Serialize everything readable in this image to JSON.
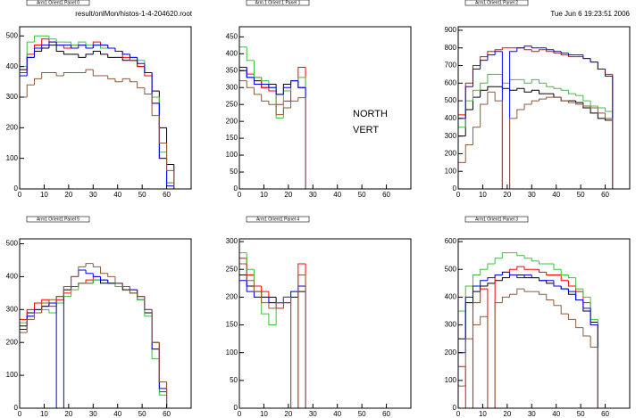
{
  "header": {
    "file": "result/onlMon/histos-1-4-204620.root",
    "date": "Tue Jun  6 19:23:51 2006"
  },
  "chart_data": [
    {
      "type": "histogram",
      "title": "Arm1 Orient1 Panel 0",
      "bins": [
        0,
        3,
        6,
        9,
        12,
        15,
        18,
        21,
        24,
        27,
        30,
        33,
        36,
        39,
        42,
        45,
        48,
        51,
        54,
        57,
        60,
        63,
        66
      ],
      "xlim": [
        0,
        70
      ],
      "xticks": [
        0,
        10,
        20,
        30,
        40,
        50,
        60
      ],
      "ylim": [
        0,
        530
      ],
      "yticks": [
        0,
        100,
        200,
        300,
        400,
        500
      ],
      "series": [
        {
          "color": "#000000",
          "values": [
            390,
            430,
            450,
            460,
            470,
            450,
            440,
            440,
            430,
            440,
            450,
            440,
            430,
            430,
            420,
            420,
            400,
            380,
            320,
            200,
            80,
            0
          ]
        },
        {
          "color": "#ff0000",
          "values": [
            380,
            440,
            470,
            490,
            480,
            470,
            460,
            470,
            470,
            460,
            480,
            470,
            460,
            450,
            430,
            420,
            400,
            370,
            280,
            100,
            20,
            0
          ]
        },
        {
          "color": "#3cc03c",
          "values": [
            400,
            480,
            500,
            500,
            490,
            480,
            480,
            470,
            480,
            470,
            470,
            460,
            460,
            450,
            440,
            430,
            420,
            380,
            300,
            120,
            20,
            0
          ]
        },
        {
          "color": "#0000ff",
          "values": [
            370,
            430,
            460,
            470,
            480,
            470,
            470,
            460,
            470,
            460,
            470,
            470,
            460,
            450,
            440,
            430,
            410,
            380,
            280,
            100,
            10,
            0
          ]
        },
        {
          "color": "#8b5a3c",
          "values": [
            300,
            340,
            360,
            380,
            380,
            370,
            380,
            380,
            380,
            390,
            370,
            370,
            360,
            350,
            360,
            350,
            330,
            310,
            240,
            150,
            60,
            0
          ]
        }
      ]
    },
    {
      "type": "histogram",
      "title": "Arm 1 Orient 1 Panel 1",
      "annotations": [
        "NORTH",
        "VERT"
      ],
      "bins": [
        0,
        3,
        6,
        9,
        12,
        15,
        18,
        21,
        24,
        27,
        30,
        33,
        36,
        39,
        42,
        45,
        48,
        51,
        54,
        57,
        60,
        63,
        66
      ],
      "xlim": [
        0,
        70
      ],
      "xticks": [
        0,
        10,
        20,
        30,
        40,
        50,
        60
      ],
      "ylim": [
        0,
        480
      ],
      "yticks": [
        0,
        50,
        100,
        150,
        200,
        250,
        300,
        350,
        400,
        450
      ],
      "series": [
        {
          "color": "#000000",
          "values": [
            350,
            330,
            320,
            300,
            310,
            280,
            310,
            320,
            300,
            0,
            0,
            0,
            0,
            0,
            0,
            0,
            0,
            0,
            0,
            0,
            0,
            0
          ]
        },
        {
          "color": "#ff0000",
          "values": [
            360,
            340,
            330,
            300,
            290,
            250,
            260,
            320,
            360,
            0,
            0,
            0,
            0,
            0,
            0,
            0,
            0,
            0,
            0,
            0,
            0,
            0
          ]
        },
        {
          "color": "#3cc03c",
          "values": [
            420,
            380,
            330,
            320,
            300,
            210,
            290,
            320,
            330,
            0,
            0,
            0,
            0,
            0,
            0,
            0,
            0,
            0,
            0,
            0,
            0,
            0
          ]
        },
        {
          "color": "#0000ff",
          "values": [
            360,
            330,
            310,
            310,
            300,
            280,
            300,
            320,
            300,
            0,
            0,
            0,
            0,
            0,
            0,
            0,
            0,
            0,
            0,
            0,
            0,
            0
          ]
        },
        {
          "color": "#8b5a3c",
          "values": [
            320,
            300,
            280,
            260,
            250,
            220,
            240,
            260,
            270,
            0,
            0,
            0,
            0,
            0,
            0,
            0,
            0,
            0,
            0,
            0,
            0,
            0
          ]
        }
      ]
    },
    {
      "type": "histogram",
      "title": "Arm1 Orient1 Panel 2",
      "bins": [
        0,
        3,
        6,
        9,
        12,
        15,
        18,
        21,
        24,
        27,
        30,
        33,
        36,
        39,
        42,
        45,
        48,
        51,
        54,
        57,
        60,
        63,
        66
      ],
      "xlim": [
        0,
        70
      ],
      "xticks": [
        0,
        10,
        20,
        30,
        40,
        50,
        60
      ],
      "ylim": [
        0,
        920
      ],
      "yticks": [
        0,
        100,
        200,
        300,
        400,
        500,
        600,
        700,
        800,
        900
      ],
      "series": [
        {
          "color": "#000000",
          "values": [
            300,
            450,
            520,
            560,
            580,
            580,
            570,
            560,
            570,
            550,
            560,
            540,
            540,
            520,
            500,
            500,
            490,
            460,
            430,
            400,
            390,
            0
          ]
        },
        {
          "color": "#ff0000",
          "values": [
            420,
            600,
            700,
            750,
            780,
            790,
            800,
            800,
            800,
            790,
            780,
            790,
            780,
            770,
            760,
            750,
            750,
            740,
            720,
            680,
            650,
            0
          ]
        },
        {
          "color": "#3cc03c",
          "values": [
            350,
            500,
            560,
            600,
            650,
            650,
            600,
            620,
            620,
            600,
            620,
            600,
            580,
            570,
            560,
            540,
            530,
            500,
            470,
            460,
            440,
            0
          ]
        },
        {
          "color": "#0000ff",
          "values": [
            400,
            580,
            680,
            730,
            760,
            780,
            0,
            780,
            800,
            810,
            800,
            800,
            790,
            780,
            770,
            760,
            760,
            740,
            720,
            680,
            640,
            0
          ]
        },
        {
          "color": "#8b5a3c",
          "values": [
            150,
            250,
            350,
            480,
            550,
            500,
            0,
            400,
            450,
            480,
            500,
            510,
            520,
            520,
            500,
            490,
            480,
            470,
            460,
            430,
            400,
            0
          ]
        }
      ]
    },
    {
      "type": "histogram",
      "title": "Arm1 Orient1 Panel 5",
      "bins": [
        0,
        3,
        6,
        9,
        12,
        15,
        18,
        21,
        24,
        27,
        30,
        33,
        36,
        39,
        42,
        45,
        48,
        51,
        54,
        57,
        60,
        63,
        66
      ],
      "xlim": [
        0,
        70
      ],
      "xticks": [
        0,
        10,
        20,
        30,
        40,
        50,
        60
      ],
      "ylim": [
        0,
        515
      ],
      "yticks": [
        0,
        100,
        200,
        300,
        400,
        500
      ],
      "series": [
        {
          "color": "#000000",
          "values": [
            250,
            290,
            300,
            310,
            320,
            340,
            360,
            370,
            380,
            380,
            390,
            380,
            380,
            370,
            360,
            350,
            330,
            290,
            200,
            80,
            0,
            0
          ]
        },
        {
          "color": "#ff0000",
          "values": [
            270,
            300,
            320,
            330,
            310,
            330,
            350,
            370,
            380,
            390,
            400,
            390,
            380,
            380,
            370,
            360,
            340,
            300,
            180,
            50,
            0,
            0
          ]
        },
        {
          "color": "#3cc03c",
          "values": [
            260,
            280,
            290,
            300,
            290,
            320,
            340,
            360,
            380,
            380,
            390,
            390,
            380,
            370,
            370,
            350,
            330,
            280,
            150,
            40,
            0,
            0
          ]
        },
        {
          "color": "#0000ff",
          "values": [
            240,
            280,
            300,
            310,
            320,
            0,
            370,
            400,
            420,
            410,
            400,
            390,
            380,
            380,
            370,
            360,
            340,
            300,
            180,
            60,
            0,
            0
          ]
        },
        {
          "color": "#8b5a3c",
          "values": [
            230,
            270,
            290,
            320,
            330,
            340,
            370,
            400,
            430,
            440,
            430,
            410,
            400,
            380,
            370,
            350,
            340,
            300,
            200,
            80,
            0,
            0
          ]
        }
      ]
    },
    {
      "type": "histogram",
      "title": "Arm1 Orient1 Panel 4",
      "bins": [
        0,
        3,
        6,
        9,
        12,
        15,
        18,
        21,
        24,
        27,
        30,
        33,
        36,
        39,
        42,
        45,
        48,
        51,
        54,
        57,
        60,
        63,
        66
      ],
      "xlim": [
        0,
        70
      ],
      "xticks": [
        0,
        10,
        20,
        30,
        40,
        50,
        60
      ],
      "ylim": [
        0,
        305
      ],
      "yticks": [
        0,
        50,
        100,
        150,
        200,
        250,
        300
      ],
      "series": [
        {
          "color": "#000000",
          "values": [
            240,
            220,
            210,
            200,
            200,
            190,
            190,
            200,
            210,
            0,
            0,
            0,
            0,
            0,
            0,
            0,
            0,
            0,
            0,
            0,
            0,
            0
          ]
        },
        {
          "color": "#ff0000",
          "values": [
            270,
            240,
            220,
            210,
            190,
            180,
            190,
            0,
            260,
            0,
            0,
            0,
            0,
            0,
            0,
            0,
            0,
            0,
            0,
            0,
            0,
            0
          ]
        },
        {
          "color": "#3cc03c",
          "values": [
            280,
            250,
            200,
            170,
            150,
            190,
            200,
            210,
            220,
            0,
            0,
            0,
            0,
            0,
            0,
            0,
            0,
            0,
            0,
            0,
            0,
            0
          ]
        },
        {
          "color": "#0000ff",
          "values": [
            230,
            210,
            200,
            200,
            190,
            190,
            200,
            210,
            220,
            0,
            0,
            0,
            0,
            0,
            0,
            0,
            0,
            0,
            0,
            0,
            0,
            0
          ]
        },
        {
          "color": "#8b5a3c",
          "values": [
            260,
            230,
            210,
            190,
            180,
            190,
            200,
            0,
            240,
            0,
            0,
            0,
            0,
            0,
            0,
            0,
            0,
            0,
            0,
            0,
            0,
            0
          ]
        }
      ]
    },
    {
      "type": "histogram",
      "title": "Arm1 Orient1 Panel 3",
      "bins": [
        0,
        3,
        6,
        9,
        12,
        15,
        18,
        21,
        24,
        27,
        30,
        33,
        36,
        39,
        42,
        45,
        48,
        51,
        54,
        57,
        60,
        63,
        66
      ],
      "xlim": [
        0,
        70
      ],
      "xticks": [
        0,
        10,
        20,
        30,
        40,
        50,
        60
      ],
      "ylim": [
        0,
        610
      ],
      "yticks": [
        0,
        100,
        200,
        300,
        400,
        500,
        600
      ],
      "series": [
        {
          "color": "#000000",
          "values": [
            250,
            380,
            420,
            440,
            450,
            460,
            470,
            480,
            480,
            470,
            470,
            460,
            450,
            440,
            430,
            410,
            390,
            350,
            310,
            0,
            0,
            0
          ]
        },
        {
          "color": "#ff0000",
          "values": [
            150,
            0,
            380,
            430,
            0,
            480,
            490,
            500,
            510,
            500,
            500,
            490,
            480,
            480,
            460,
            440,
            420,
            380,
            300,
            0,
            0,
            0
          ]
        },
        {
          "color": "#3cc03c",
          "values": [
            350,
            440,
            480,
            500,
            520,
            540,
            560,
            560,
            550,
            540,
            530,
            520,
            520,
            500,
            480,
            470,
            430,
            400,
            320,
            0,
            0,
            0
          ]
        },
        {
          "color": "#0000ff",
          "values": [
            200,
            400,
            440,
            460,
            470,
            480,
            490,
            480,
            470,
            480,
            470,
            460,
            460,
            440,
            430,
            420,
            390,
            360,
            300,
            0,
            0,
            0
          ]
        },
        {
          "color": "#8b5a3c",
          "values": [
            80,
            250,
            300,
            330,
            0,
            380,
            400,
            410,
            430,
            420,
            420,
            410,
            390,
            370,
            340,
            320,
            290,
            260,
            220,
            0,
            0,
            0
          ]
        }
      ]
    }
  ]
}
